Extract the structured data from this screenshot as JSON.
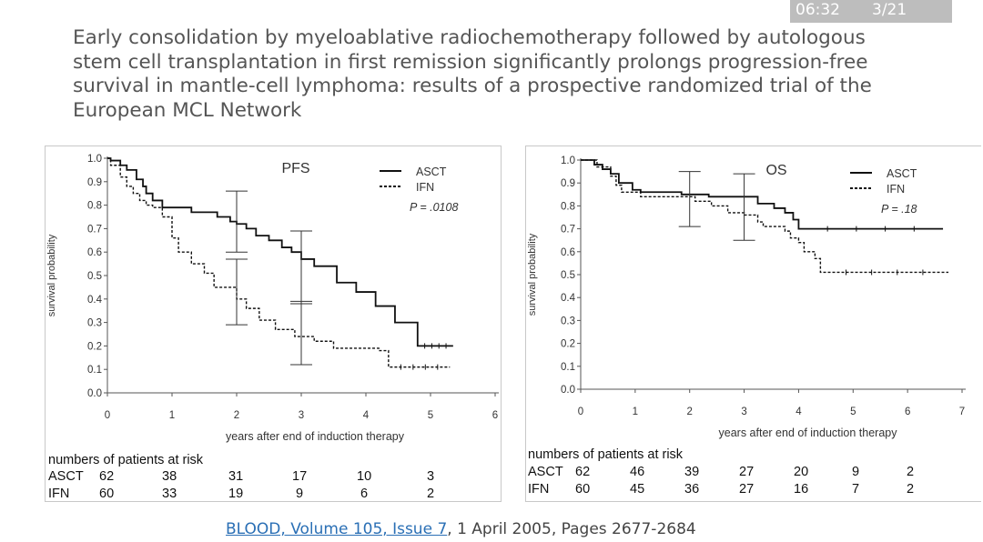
{
  "status_bar": {
    "time": "06:32",
    "page": "3/21"
  },
  "slide_title": "Early consolidation by myeloablative radiochemotherapy followed by autologous stem cell transplantation in first remission significantly prolongs progression-free survival in mantle-cell lymphoma: results of a prospective randomized trial of the European MCL Network",
  "citation": {
    "link_text": "BLOOD, Volume 105, Issue 7",
    "rest": ", 1 April 2005, Pages 2677-2684"
  },
  "chart_data": [
    {
      "type": "line",
      "title": "PFS",
      "xlabel": "years after end of induction therapy",
      "ylabel": "survival probability",
      "xlim": [
        0,
        6
      ],
      "ylim": [
        0,
        1
      ],
      "x_ticks": [
        "0",
        "1",
        "2",
        "3",
        "4",
        "5",
        "6"
      ],
      "y_ticks": [
        "0.0",
        "0.1",
        "0.2",
        "0.3",
        "0.4",
        "0.5",
        "0.6",
        "0.7",
        "0.8",
        "0.9",
        "1.0"
      ],
      "p_value": "P = .0108",
      "series": [
        {
          "name": "ASCT",
          "style": "solid",
          "x": [
            0,
            0.05,
            0.2,
            0.3,
            0.45,
            0.55,
            0.6,
            0.7,
            0.85,
            1.3,
            1.7,
            1.9,
            2.0,
            2.15,
            2.3,
            2.5,
            2.7,
            2.85,
            3.0,
            3.2,
            3.55,
            3.85,
            4.15,
            4.45,
            4.8,
            5.35
          ],
          "y": [
            1.0,
            0.99,
            0.97,
            0.95,
            0.91,
            0.88,
            0.85,
            0.82,
            0.79,
            0.77,
            0.75,
            0.73,
            0.72,
            0.7,
            0.67,
            0.65,
            0.62,
            0.6,
            0.57,
            0.54,
            0.47,
            0.43,
            0.37,
            0.3,
            0.2,
            0.2
          ]
        },
        {
          "name": "IFN",
          "style": "dashed",
          "x": [
            0,
            0.05,
            0.2,
            0.3,
            0.4,
            0.5,
            0.6,
            0.7,
            0.85,
            1.0,
            1.1,
            1.3,
            1.5,
            1.65,
            1.85,
            2.0,
            2.15,
            2.35,
            2.6,
            2.9,
            3.2,
            3.5,
            4.2,
            4.35,
            5.3
          ],
          "y": [
            1.0,
            0.97,
            0.92,
            0.88,
            0.85,
            0.82,
            0.8,
            0.79,
            0.75,
            0.66,
            0.6,
            0.55,
            0.51,
            0.45,
            0.45,
            0.4,
            0.36,
            0.31,
            0.27,
            0.24,
            0.22,
            0.19,
            0.18,
            0.11,
            0.11
          ]
        }
      ],
      "risk_table": {
        "title": "numbers of patients at risk",
        "rows": [
          {
            "label": "ASCT",
            "values": [
              "62",
              "38",
              "31",
              "17",
              "10",
              "3"
            ]
          },
          {
            "label": "IFN",
            "values": [
              "60",
              "33",
              "19",
              "9",
              "6",
              "2"
            ]
          }
        ]
      }
    },
    {
      "type": "line",
      "title": "OS",
      "xlabel": "years after end of induction therapy",
      "ylabel": "survival probability",
      "xlim": [
        0,
        7
      ],
      "ylim": [
        0,
        1
      ],
      "x_ticks": [
        "0",
        "1",
        "2",
        "3",
        "4",
        "5",
        "6",
        "7"
      ],
      "y_ticks": [
        "0.0",
        "0.1",
        "0.2",
        "0.3",
        "0.4",
        "0.5",
        "0.6",
        "0.7",
        "0.8",
        "0.9",
        "1.0"
      ],
      "p_value": "P = .18",
      "series": [
        {
          "name": "ASCT",
          "style": "solid",
          "x": [
            0,
            0.25,
            0.4,
            0.55,
            0.7,
            0.95,
            1.1,
            1.85,
            2.35,
            2.95,
            3.25,
            3.55,
            3.75,
            3.9,
            4.0,
            6.65
          ],
          "y": [
            1.0,
            0.98,
            0.96,
            0.94,
            0.9,
            0.87,
            0.86,
            0.85,
            0.84,
            0.84,
            0.81,
            0.79,
            0.77,
            0.74,
            0.7,
            0.7
          ]
        },
        {
          "name": "IFN",
          "style": "dashed",
          "x": [
            0,
            0.3,
            0.55,
            0.65,
            0.75,
            1.1,
            2.1,
            2.4,
            2.7,
            3.0,
            3.25,
            3.35,
            3.75,
            3.85,
            4.0,
            4.1,
            4.3,
            4.4,
            6.75
          ],
          "y": [
            1.0,
            0.97,
            0.93,
            0.89,
            0.86,
            0.84,
            0.82,
            0.8,
            0.77,
            0.76,
            0.73,
            0.71,
            0.69,
            0.66,
            0.64,
            0.6,
            0.57,
            0.51,
            0.51
          ]
        }
      ],
      "risk_table": {
        "title": "numbers of patients at risk",
        "rows": [
          {
            "label": "ASCT",
            "values": [
              "62",
              "46",
              "39",
              "27",
              "20",
              "9",
              "2"
            ]
          },
          {
            "label": "IFN",
            "values": [
              "60",
              "45",
              "36",
              "27",
              "16",
              "7",
              "2"
            ]
          }
        ]
      }
    }
  ]
}
